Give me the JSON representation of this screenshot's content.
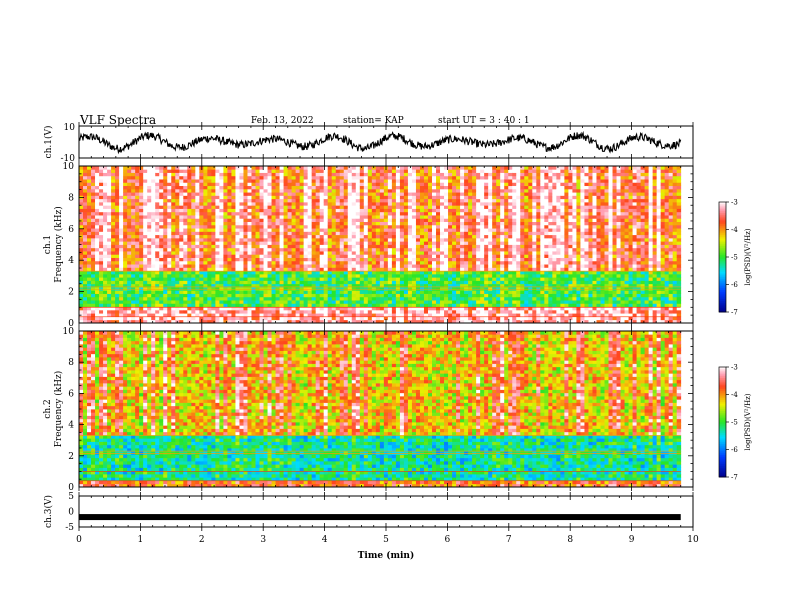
{
  "header": {
    "title": "VLF Spectra",
    "date": "Feb. 13, 2022",
    "station": "station= KAP",
    "start": "start UT =  3 : 40 : 1"
  },
  "chart_data": [
    {
      "type": "line",
      "title": "",
      "ylabel": "ch.1(V)",
      "ylim": [
        -10,
        10
      ],
      "yticks": [
        "10",
        "-10"
      ],
      "xlim": [
        0,
        10
      ],
      "series": [
        {
          "color": "#000000",
          "description": "noisy waveform oscillating roughly between -7 and 7 V over 0-9.8 min"
        }
      ]
    },
    {
      "type": "heatmap",
      "title": "",
      "ylabel": "ch.1",
      "ylabel2": "Frequency (kHz)",
      "ylim": [
        0,
        10
      ],
      "yticks": [
        "0",
        "2",
        "4",
        "6",
        "8",
        "10"
      ],
      "xlim": [
        0,
        10
      ],
      "data_end_min": 9.8,
      "bands": [
        {
          "from_khz": 0,
          "to_khz": 1,
          "level": -3.3
        },
        {
          "from_khz": 1,
          "to_khz": 3.3,
          "level": -5.0
        },
        {
          "from_khz": 3.3,
          "to_khz": 10,
          "level": -3.6
        }
      ],
      "colorbar": {
        "label": "log(PSD)(V²/Hz)",
        "range": [
          -7,
          -3
        ],
        "ticks": [
          "-3",
          "-4",
          "-5",
          "-6",
          "-7"
        ]
      }
    },
    {
      "type": "heatmap",
      "title": "",
      "ylabel": "ch.2",
      "ylabel2": "Frequency (kHz)",
      "ylim": [
        0,
        10
      ],
      "yticks": [
        "0",
        "2",
        "4",
        "6",
        "8",
        "10"
      ],
      "xlim": [
        0,
        10
      ],
      "data_end_min": 9.8,
      "bands": [
        {
          "from_khz": 0,
          "to_khz": 0.5,
          "level": -3.8
        },
        {
          "from_khz": 0.5,
          "to_khz": 3.3,
          "level": -5.3
        },
        {
          "from_khz": 3.3,
          "to_khz": 10,
          "level": -4.1
        }
      ],
      "colorbar": {
        "label": "log(PSD)(V²/Hz)",
        "range": [
          -7,
          -3
        ],
        "ticks": [
          "-3",
          "-4",
          "-5",
          "-6",
          "-7"
        ]
      }
    },
    {
      "type": "line",
      "title": "",
      "ylabel": "ch.3(V)",
      "ylim": [
        -5,
        5
      ],
      "yticks": [
        "5",
        "0",
        "-5"
      ],
      "xlim": [
        0,
        10
      ],
      "xlabel": "Time (min)",
      "xticks": [
        "0",
        "1",
        "2",
        "3",
        "4",
        "5",
        "6",
        "7",
        "8",
        "9",
        "10"
      ],
      "series": [
        {
          "color": "#000000",
          "value": -1.8
        }
      ]
    }
  ]
}
